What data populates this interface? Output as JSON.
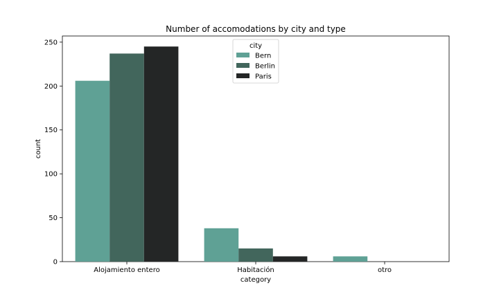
{
  "chart_data": {
    "type": "bar",
    "title": "Number of accomodations by city and type",
    "xlabel": "category",
    "ylabel": "count",
    "categories": [
      "Alojamiento entero",
      "Habitación",
      "otro"
    ],
    "series": [
      {
        "name": "Bern",
        "values": [
          206,
          38,
          6
        ],
        "color": "#5fa195"
      },
      {
        "name": "Berlin",
        "values": [
          237,
          15,
          0
        ],
        "color": "#42665c"
      },
      {
        "name": "Paris",
        "values": [
          245,
          6,
          0
        ],
        "color": "#242626"
      }
    ],
    "ylim": [
      0,
      257
    ],
    "yticks": [
      0,
      50,
      100,
      150,
      200,
      250
    ],
    "legend": {
      "title": "city",
      "placement": "top-center"
    },
    "grid": false
  }
}
